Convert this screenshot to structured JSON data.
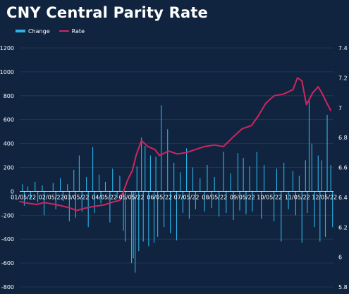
{
  "title": "CNY Central Parity Rate",
  "colors": {
    "background": "#10243f",
    "change": "#2bb3e8",
    "rate": "#d1245f",
    "grid": "#223a5a"
  },
  "chart_data": {
    "type": "bar+line",
    "title": "CNY Central Parity Rate",
    "legend": {
      "placement": "top-left",
      "entries": [
        "Change",
        "Rate"
      ]
    },
    "grid": true,
    "x_axis": {
      "type": "date",
      "range": [
        "2022-01-01",
        "2022-12-15"
      ],
      "tick_labels": [
        "01/05/22",
        "02/05/22",
        "03/05/22",
        "04/05/22",
        "05/05/22",
        "06/05/22",
        "07/05/22",
        "08/05/22",
        "09/05/22",
        "10/05/22",
        "11/05/22",
        "12/05/22"
      ],
      "tick_dates": [
        "2022-01-05",
        "2022-02-05",
        "2022-03-05",
        "2022-04-05",
        "2022-05-05",
        "2022-06-05",
        "2022-07-05",
        "2022-08-05",
        "2022-09-05",
        "2022-10-05",
        "2022-11-05",
        "2022-12-05"
      ]
    },
    "y_left": {
      "range": [
        -800,
        1200
      ],
      "ticks": [
        "1200",
        "1000",
        "800",
        "600",
        "400",
        "200",
        "0",
        "-200",
        "-400",
        "-600",
        "-800"
      ],
      "tick_values": [
        1200,
        1000,
        800,
        600,
        400,
        200,
        0,
        -200,
        -400,
        -600,
        -800
      ]
    },
    "y_right": {
      "range": [
        5.8,
        7.4
      ],
      "ticks": [
        "7.4",
        "7.2",
        "7",
        "6.8",
        "6.6",
        "6.4",
        "6.2",
        "6",
        "5.8"
      ],
      "tick_values": [
        7.4,
        7.2,
        7.0,
        6.8,
        6.6,
        6.4,
        6.2,
        6.0,
        5.8
      ]
    },
    "series": [
      {
        "name": "Change",
        "type": "bar",
        "axis": "left",
        "points": [
          [
            "2022-01-04",
            60
          ],
          [
            "2022-01-06",
            -120
          ],
          [
            "2022-01-10",
            40
          ],
          [
            "2022-01-13",
            -60
          ],
          [
            "2022-01-18",
            80
          ],
          [
            "2022-01-21",
            -90
          ],
          [
            "2022-01-26",
            50
          ],
          [
            "2022-01-28",
            -200
          ],
          [
            "2022-02-07",
            70
          ],
          [
            "2022-02-10",
            -150
          ],
          [
            "2022-02-15",
            110
          ],
          [
            "2022-02-18",
            -80
          ],
          [
            "2022-02-23",
            60
          ],
          [
            "2022-02-25",
            -250
          ],
          [
            "2022-03-02",
            180
          ],
          [
            "2022-03-04",
            -220
          ],
          [
            "2022-03-08",
            300
          ],
          [
            "2022-03-11",
            -170
          ],
          [
            "2022-03-16",
            120
          ],
          [
            "2022-03-18",
            -300
          ],
          [
            "2022-03-23",
            370
          ],
          [
            "2022-03-25",
            -180
          ],
          [
            "2022-03-30",
            140
          ],
          [
            "2022-04-01",
            -100
          ],
          [
            "2022-04-06",
            80
          ],
          [
            "2022-04-11",
            -260
          ],
          [
            "2022-04-14",
            190
          ],
          [
            "2022-04-19",
            -60
          ],
          [
            "2022-04-22",
            130
          ],
          [
            "2022-04-26",
            -330
          ],
          [
            "2022-04-28",
            -420
          ],
          [
            "2022-05-05",
            -600
          ],
          [
            "2022-05-07",
            -560
          ],
          [
            "2022-05-09",
            -680
          ],
          [
            "2022-05-11",
            210
          ],
          [
            "2022-05-13",
            -500
          ],
          [
            "2022-05-16",
            450
          ],
          [
            "2022-05-18",
            -420
          ],
          [
            "2022-05-20",
            380
          ],
          [
            "2022-05-24",
            -460
          ],
          [
            "2022-05-26",
            300
          ],
          [
            "2022-05-30",
            -430
          ],
          [
            "2022-06-01",
            290
          ],
          [
            "2022-06-03",
            -380
          ],
          [
            "2022-06-07",
            720
          ],
          [
            "2022-06-10",
            -300
          ],
          [
            "2022-06-14",
            520
          ],
          [
            "2022-06-17",
            -350
          ],
          [
            "2022-06-21",
            240
          ],
          [
            "2022-06-24",
            -410
          ],
          [
            "2022-06-28",
            160
          ],
          [
            "2022-07-01",
            -180
          ],
          [
            "2022-07-05",
            360
          ],
          [
            "2022-07-08",
            -230
          ],
          [
            "2022-07-12",
            200
          ],
          [
            "2022-07-15",
            -150
          ],
          [
            "2022-07-20",
            110
          ],
          [
            "2022-07-25",
            -170
          ],
          [
            "2022-07-28",
            220
          ],
          [
            "2022-08-02",
            -140
          ],
          [
            "2022-08-05",
            120
          ],
          [
            "2022-08-10",
            -210
          ],
          [
            "2022-08-15",
            330
          ],
          [
            "2022-08-18",
            -180
          ],
          [
            "2022-08-23",
            150
          ],
          [
            "2022-08-26",
            -240
          ],
          [
            "2022-08-31",
            320
          ],
          [
            "2022-09-02",
            -160
          ],
          [
            "2022-09-06",
            280
          ],
          [
            "2022-09-09",
            -190
          ],
          [
            "2022-09-13",
            210
          ],
          [
            "2022-09-16",
            -170
          ],
          [
            "2022-09-21",
            330
          ],
          [
            "2022-09-26",
            -230
          ],
          [
            "2022-09-29",
            220
          ],
          [
            "2022-10-10",
            -250
          ],
          [
            "2022-10-13",
            190
          ],
          [
            "2022-10-18",
            -420
          ],
          [
            "2022-10-21",
            240
          ],
          [
            "2022-10-26",
            -150
          ],
          [
            "2022-10-31",
            170
          ],
          [
            "2022-11-03",
            -200
          ],
          [
            "2022-11-07",
            130
          ],
          [
            "2022-11-10",
            -430
          ],
          [
            "2022-11-14",
            260
          ],
          [
            "2022-11-16",
            -180
          ],
          [
            "2022-11-18",
            760
          ],
          [
            "2022-11-21",
            400
          ],
          [
            "2022-11-24",
            -300
          ],
          [
            "2022-11-28",
            300
          ],
          [
            "2022-11-30",
            -420
          ],
          [
            "2022-12-02",
            260
          ],
          [
            "2022-12-06",
            -380
          ],
          [
            "2022-12-08",
            640
          ],
          [
            "2022-12-12",
            220
          ],
          [
            "2022-12-14",
            -300
          ]
        ]
      },
      {
        "name": "Rate",
        "type": "line",
        "axis": "right",
        "points": [
          [
            "2022-01-01",
            6.372
          ],
          [
            "2022-01-10",
            6.36
          ],
          [
            "2022-01-20",
            6.352
          ],
          [
            "2022-01-28",
            6.365
          ],
          [
            "2022-02-05",
            6.357
          ],
          [
            "2022-02-15",
            6.345
          ],
          [
            "2022-02-25",
            6.33
          ],
          [
            "2022-03-05",
            6.312
          ],
          [
            "2022-03-15",
            6.328
          ],
          [
            "2022-03-25",
            6.34
          ],
          [
            "2022-04-05",
            6.35
          ],
          [
            "2022-04-15",
            6.37
          ],
          [
            "2022-04-22",
            6.38
          ],
          [
            "2022-04-26",
            6.44
          ],
          [
            "2022-05-01",
            6.52
          ],
          [
            "2022-05-06",
            6.58
          ],
          [
            "2022-05-10",
            6.68
          ],
          [
            "2022-05-16",
            6.78
          ],
          [
            "2022-05-23",
            6.74
          ],
          [
            "2022-05-31",
            6.72
          ],
          [
            "2022-06-05",
            6.68
          ],
          [
            "2022-06-15",
            6.71
          ],
          [
            "2022-06-25",
            6.69
          ],
          [
            "2022-07-05",
            6.7
          ],
          [
            "2022-07-15",
            6.72
          ],
          [
            "2022-07-25",
            6.74
          ],
          [
            "2022-08-05",
            6.75
          ],
          [
            "2022-08-15",
            6.74
          ],
          [
            "2022-08-25",
            6.8
          ],
          [
            "2022-09-05",
            6.86
          ],
          [
            "2022-09-15",
            6.88
          ],
          [
            "2022-09-22",
            6.94
          ],
          [
            "2022-10-01",
            7.03
          ],
          [
            "2022-10-10",
            7.08
          ],
          [
            "2022-10-20",
            7.09
          ],
          [
            "2022-10-31",
            7.12
          ],
          [
            "2022-11-05",
            7.2
          ],
          [
            "2022-11-10",
            7.18
          ],
          [
            "2022-11-15",
            7.02
          ],
          [
            "2022-11-22",
            7.1
          ],
          [
            "2022-11-28",
            7.14
          ],
          [
            "2022-12-02",
            7.1
          ],
          [
            "2022-12-06",
            7.05
          ],
          [
            "2022-12-12",
            6.98
          ]
        ]
      }
    ]
  }
}
